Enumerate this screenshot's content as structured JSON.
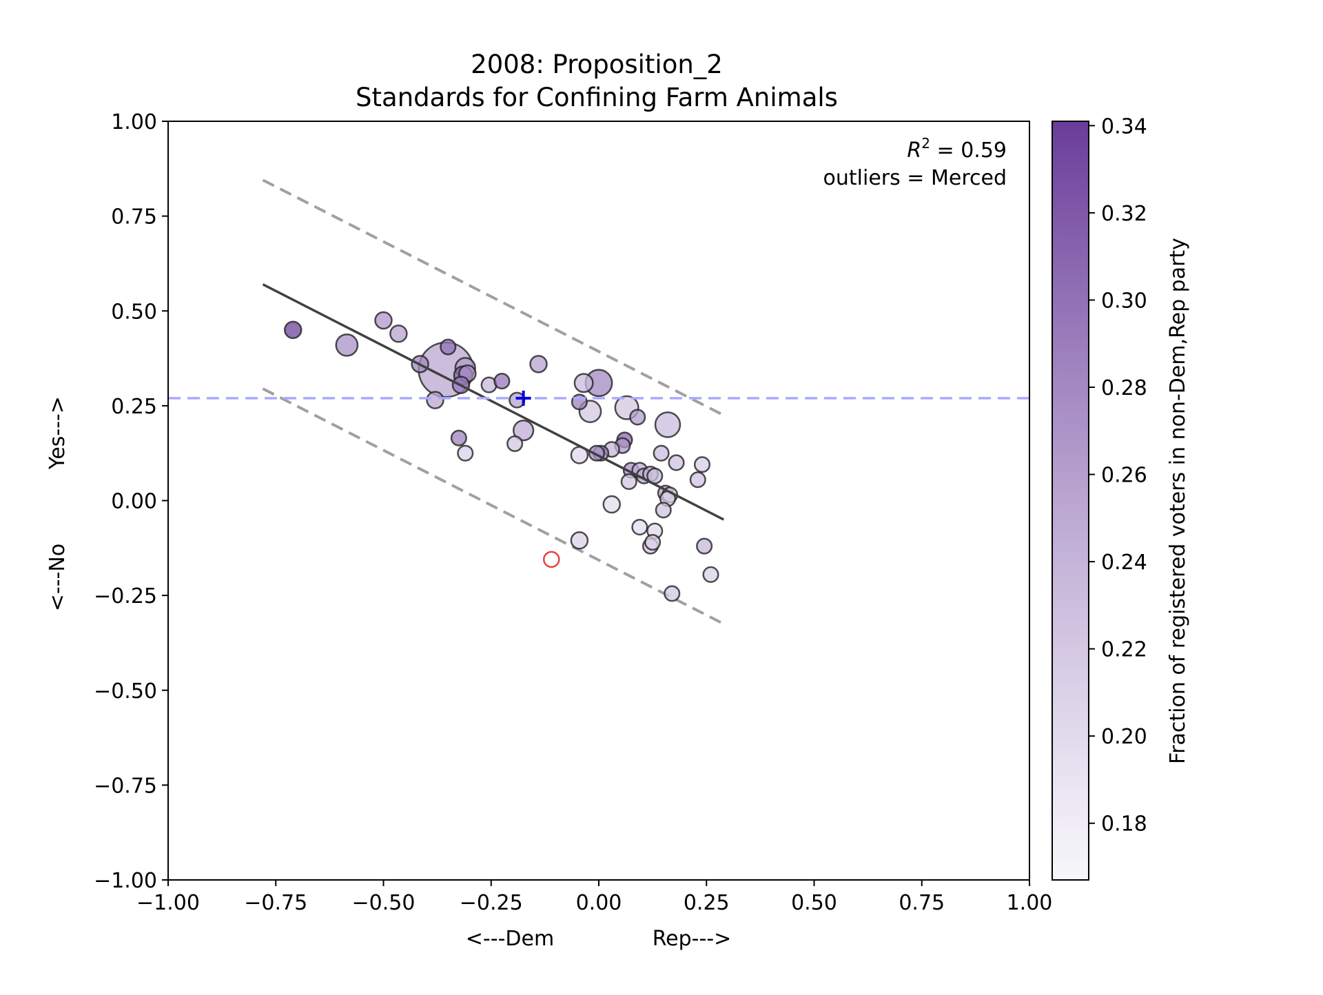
{
  "chart_data": {
    "type": "scatter",
    "title": "2008: Proposition_2",
    "subtitle": "Standards for Confining Farm Animals",
    "xlabel_left": "<---Dem",
    "xlabel_right": "Rep--->",
    "ylabel_bottom": "<---No",
    "ylabel_top": "Yes--->",
    "xlim": [
      -1.0,
      1.0
    ],
    "ylim": [
      -1.0,
      1.0
    ],
    "xticks": [
      -1.0,
      -0.75,
      -0.5,
      -0.25,
      0.0,
      0.25,
      0.5,
      0.75,
      1.0
    ],
    "yticks": [
      -1.0,
      -0.75,
      -0.5,
      -0.25,
      0.0,
      0.25,
      0.5,
      0.75,
      1.0
    ],
    "xtick_labels": [
      "−1.00",
      "−0.75",
      "−0.50",
      "−0.25",
      "0.00",
      "0.25",
      "0.50",
      "0.75",
      "1.00"
    ],
    "ytick_labels": [
      "−1.00",
      "−0.75",
      "−0.50",
      "−0.25",
      "0.00",
      "0.25",
      "0.50",
      "0.75",
      "1.00"
    ],
    "annotation_r2_label": "R",
    "annotation_r2_sup": "2",
    "annotation_r2_value": " = 0.59",
    "annotation_outliers": "outliers = Merced",
    "grid": false,
    "regression_line": {
      "x": [
        -0.78,
        0.29
      ],
      "y": [
        0.57,
        -0.05
      ],
      "color": "#404040"
    },
    "upper_band": {
      "x": [
        -0.78,
        0.29
      ],
      "y": [
        0.845,
        0.225
      ],
      "color": "#a0a0a0"
    },
    "lower_band": {
      "x": [
        -0.78,
        0.29
      ],
      "y": [
        0.295,
        -0.325
      ],
      "color": "#a0a0a0"
    },
    "reference_line": {
      "y": 0.27,
      "color": "#aaaaff"
    },
    "state_marker": {
      "x": -0.175,
      "y": 0.27,
      "color": "#0000dd"
    },
    "outlier_marker": {
      "x": -0.11,
      "y": -0.155,
      "color": "#e84040"
    },
    "colorbar": {
      "label": "Fraction of registered voters in non-Dem,Rep party",
      "min": 0.167,
      "max": 0.341,
      "ticks": [
        0.18,
        0.2,
        0.22,
        0.24,
        0.26,
        0.28,
        0.3,
        0.32,
        0.34
      ],
      "tick_labels": [
        "0.18",
        "0.20",
        "0.22",
        "0.24",
        "0.26",
        "0.28",
        "0.30",
        "0.32",
        "0.34"
      ],
      "color_low": "#f5f4fa",
      "color_high": "#6a3d9a"
    },
    "points": [
      {
        "x": -0.71,
        "y": 0.45,
        "size": 1.0,
        "c": 0.335
      },
      {
        "x": -0.585,
        "y": 0.41,
        "size": 1.3,
        "c": 0.26
      },
      {
        "x": -0.5,
        "y": 0.475,
        "size": 1.0,
        "c": 0.255
      },
      {
        "x": -0.465,
        "y": 0.44,
        "size": 1.0,
        "c": 0.245
      },
      {
        "x": -0.415,
        "y": 0.36,
        "size": 1.0,
        "c": 0.27
      },
      {
        "x": -0.355,
        "y": 0.345,
        "size": 3.3,
        "c": 0.24
      },
      {
        "x": -0.38,
        "y": 0.265,
        "size": 1.0,
        "c": 0.24
      },
      {
        "x": -0.35,
        "y": 0.405,
        "size": 0.9,
        "c": 0.29
      },
      {
        "x": -0.31,
        "y": 0.35,
        "size": 1.2,
        "c": 0.25
      },
      {
        "x": -0.305,
        "y": 0.335,
        "size": 1.0,
        "c": 0.26
      },
      {
        "x": -0.315,
        "y": 0.33,
        "size": 1.1,
        "c": 0.3
      },
      {
        "x": -0.32,
        "y": 0.305,
        "size": 1.0,
        "c": 0.28
      },
      {
        "x": -0.255,
        "y": 0.305,
        "size": 0.9,
        "c": 0.225
      },
      {
        "x": -0.225,
        "y": 0.315,
        "size": 0.9,
        "c": 0.285
      },
      {
        "x": -0.14,
        "y": 0.36,
        "size": 1.0,
        "c": 0.245
      },
      {
        "x": -0.19,
        "y": 0.265,
        "size": 0.9,
        "c": 0.245
      },
      {
        "x": -0.175,
        "y": 0.185,
        "size": 1.2,
        "c": 0.235
      },
      {
        "x": -0.325,
        "y": 0.165,
        "size": 0.9,
        "c": 0.275
      },
      {
        "x": -0.31,
        "y": 0.125,
        "size": 0.9,
        "c": 0.2
      },
      {
        "x": -0.195,
        "y": 0.15,
        "size": 0.9,
        "c": 0.21
      },
      {
        "x": -0.045,
        "y": 0.26,
        "size": 0.9,
        "c": 0.275
      },
      {
        "x": -0.035,
        "y": 0.31,
        "size": 1.1,
        "c": 0.22
      },
      {
        "x": 0.0,
        "y": 0.31,
        "size": 1.6,
        "c": 0.27
      },
      {
        "x": -0.02,
        "y": 0.235,
        "size": 1.3,
        "c": 0.21
      },
      {
        "x": 0.065,
        "y": 0.245,
        "size": 1.4,
        "c": 0.21
      },
      {
        "x": 0.09,
        "y": 0.22,
        "size": 0.9,
        "c": 0.25
      },
      {
        "x": 0.16,
        "y": 0.2,
        "size": 1.5,
        "c": 0.22
      },
      {
        "x": 0.06,
        "y": 0.16,
        "size": 0.9,
        "c": 0.3
      },
      {
        "x": 0.055,
        "y": 0.145,
        "size": 0.9,
        "c": 0.255
      },
      {
        "x": 0.03,
        "y": 0.135,
        "size": 0.9,
        "c": 0.225
      },
      {
        "x": 0.005,
        "y": 0.125,
        "size": 0.9,
        "c": 0.28
      },
      {
        "x": -0.005,
        "y": 0.125,
        "size": 0.9,
        "c": 0.26
      },
      {
        "x": -0.045,
        "y": 0.12,
        "size": 1.0,
        "c": 0.195
      },
      {
        "x": 0.145,
        "y": 0.125,
        "size": 0.9,
        "c": 0.22
      },
      {
        "x": 0.18,
        "y": 0.1,
        "size": 0.9,
        "c": 0.215
      },
      {
        "x": 0.24,
        "y": 0.095,
        "size": 0.9,
        "c": 0.205
      },
      {
        "x": 0.075,
        "y": 0.08,
        "size": 0.9,
        "c": 0.26
      },
      {
        "x": 0.095,
        "y": 0.08,
        "size": 0.9,
        "c": 0.235
      },
      {
        "x": 0.105,
        "y": 0.065,
        "size": 0.9,
        "c": 0.24
      },
      {
        "x": 0.12,
        "y": 0.07,
        "size": 0.9,
        "c": 0.225
      },
      {
        "x": 0.13,
        "y": 0.065,
        "size": 0.9,
        "c": 0.22
      },
      {
        "x": 0.07,
        "y": 0.05,
        "size": 0.9,
        "c": 0.21
      },
      {
        "x": 0.23,
        "y": 0.055,
        "size": 0.9,
        "c": 0.215
      },
      {
        "x": 0.155,
        "y": 0.02,
        "size": 0.9,
        "c": 0.245
      },
      {
        "x": 0.165,
        "y": 0.015,
        "size": 0.9,
        "c": 0.2
      },
      {
        "x": 0.16,
        "y": 0.005,
        "size": 0.9,
        "c": 0.205
      },
      {
        "x": 0.03,
        "y": -0.01,
        "size": 1.0,
        "c": 0.19
      },
      {
        "x": 0.15,
        "y": -0.025,
        "size": 0.9,
        "c": 0.215
      },
      {
        "x": 0.095,
        "y": -0.07,
        "size": 0.9,
        "c": 0.19
      },
      {
        "x": 0.13,
        "y": -0.08,
        "size": 0.9,
        "c": 0.195
      },
      {
        "x": 0.12,
        "y": -0.12,
        "size": 0.9,
        "c": 0.21
      },
      {
        "x": 0.125,
        "y": -0.11,
        "size": 0.9,
        "c": 0.2
      },
      {
        "x": 0.245,
        "y": -0.12,
        "size": 0.9,
        "c": 0.225
      },
      {
        "x": -0.045,
        "y": -0.105,
        "size": 1.0,
        "c": 0.2
      },
      {
        "x": 0.26,
        "y": -0.195,
        "size": 0.9,
        "c": 0.2
      },
      {
        "x": 0.17,
        "y": -0.245,
        "size": 0.9,
        "c": 0.21
      }
    ]
  }
}
